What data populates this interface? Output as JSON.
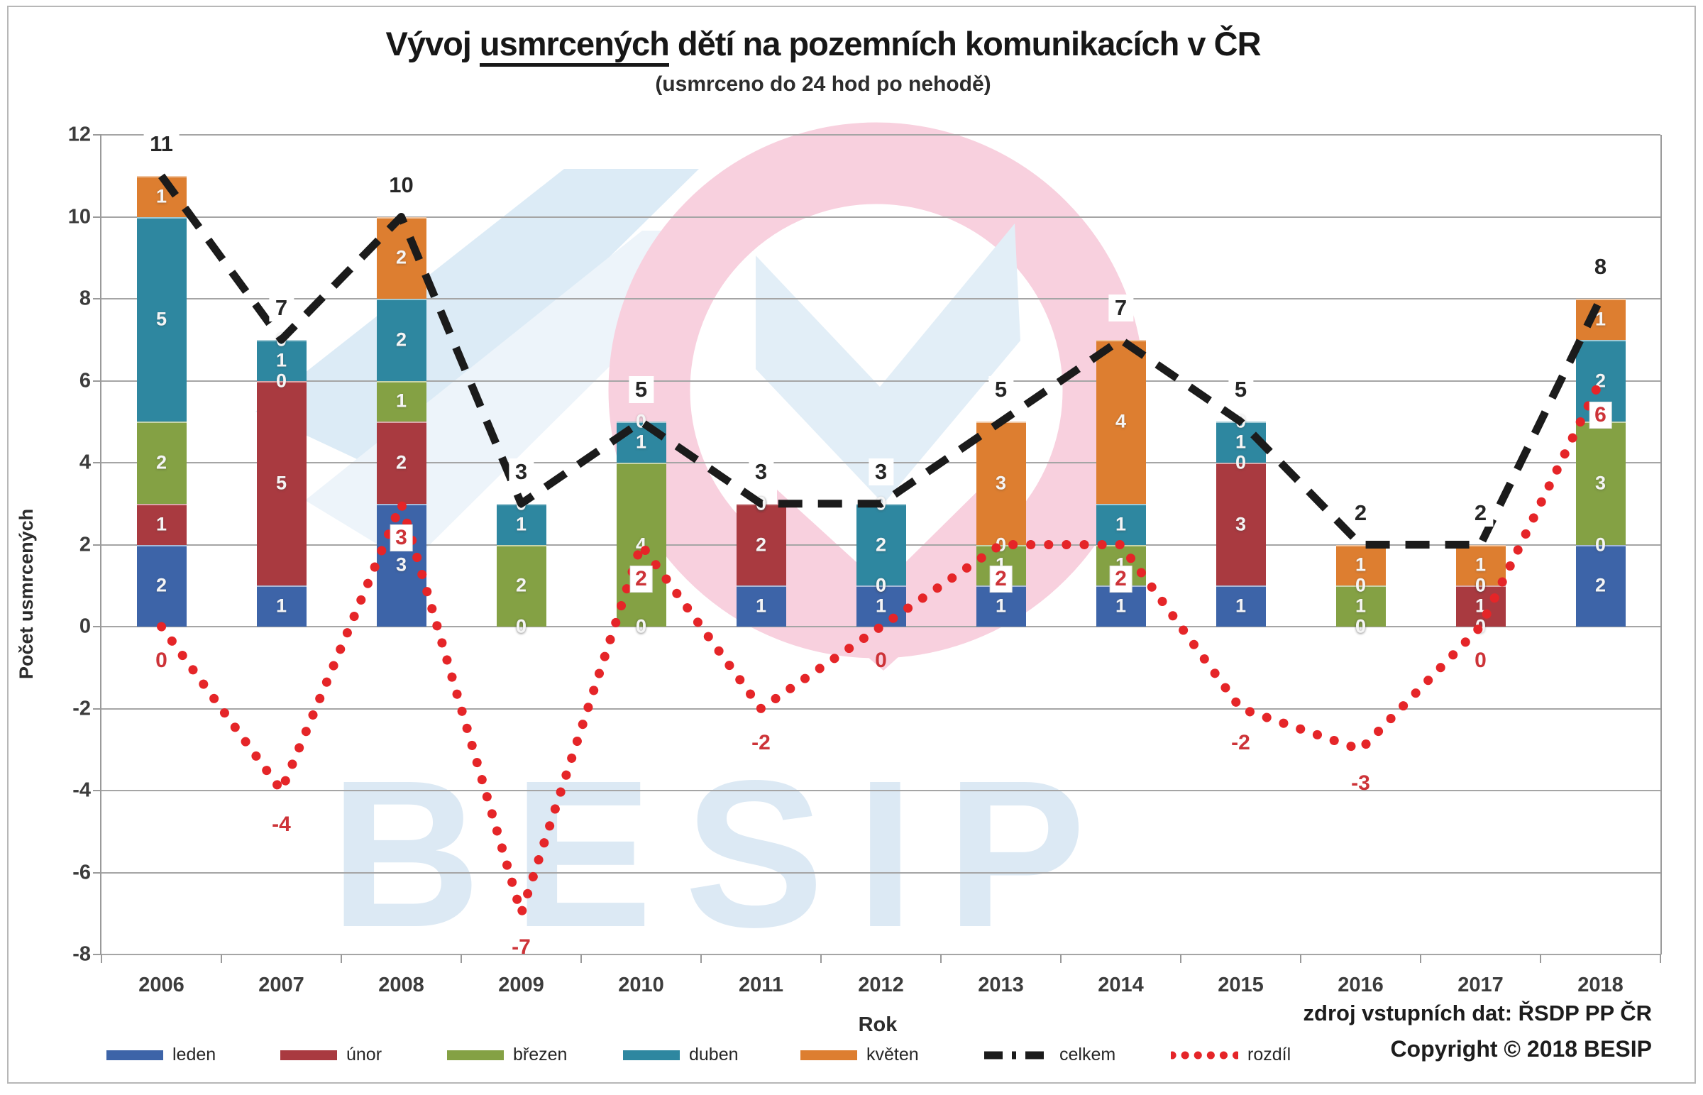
{
  "title": {
    "prefix": "Vývoj ",
    "underline": "usmrcených",
    "suffix": " dětí na pozemních komunikacích v ČR"
  },
  "subtitle": "(usmrceno do 24 hod po nehodě)",
  "axes": {
    "y_label": "Počet usmrcených",
    "x_label": "Rok"
  },
  "footer": {
    "source": "zdroj vstupních dat: ŘSDP PP ČR",
    "copyright": "Copyright © 2018 BESIP"
  },
  "watermark": {
    "text": "BESIP"
  },
  "chart_data": {
    "type": "bar",
    "subtype": "stacked-columns-with-line-overlays",
    "title": "Vývoj usmrcených dětí na pozemních komunikacích v ČR",
    "xlabel": "Rok",
    "ylabel": "Počet usmrcených",
    "ylim": [
      -8,
      12
    ],
    "yticks": [
      12,
      10,
      8,
      6,
      4,
      2,
      0,
      -2,
      -4,
      -6,
      -8
    ],
    "grid": true,
    "legend_position": "bottom",
    "categories": [
      "2006",
      "2007",
      "2008",
      "2009",
      "2010",
      "2011",
      "2012",
      "2013",
      "2014",
      "2015",
      "2016",
      "2017",
      "2018"
    ],
    "series": [
      {
        "name": "leden",
        "color": "#3d64a8",
        "values": [
          2,
          1,
          3,
          0,
          0,
          1,
          1,
          1,
          1,
          1,
          0,
          0,
          2
        ]
      },
      {
        "name": "únor",
        "color": "#a93a40",
        "values": [
          1,
          5,
          2,
          0,
          0,
          2,
          0,
          0,
          0,
          3,
          0,
          1,
          0
        ]
      },
      {
        "name": "březen",
        "color": "#84a144",
        "values": [
          2,
          0,
          1,
          2,
          4,
          0,
          0,
          1,
          1,
          0,
          1,
          0,
          3
        ]
      },
      {
        "name": "duben",
        "color": "#2e87a0",
        "values": [
          5,
          1,
          2,
          1,
          1,
          0,
          2,
          0,
          1,
          1,
          0,
          0,
          2
        ]
      },
      {
        "name": "květen",
        "color": "#dd7e30",
        "values": [
          1,
          0,
          2,
          0,
          0,
          0,
          0,
          3,
          4,
          0,
          1,
          1,
          1
        ]
      }
    ],
    "line_series": [
      {
        "name": "celkem",
        "style": "dashed",
        "color": "#1b1b1b",
        "values": [
          11,
          7,
          10,
          3,
          5,
          3,
          3,
          5,
          7,
          5,
          2,
          2,
          8
        ]
      },
      {
        "name": "rozdíl",
        "style": "dotted",
        "color": "#e52528",
        "values": [
          0,
          -4,
          3,
          -7,
          2,
          -2,
          0,
          2,
          2,
          -2,
          -3,
          0,
          6
        ]
      }
    ]
  }
}
